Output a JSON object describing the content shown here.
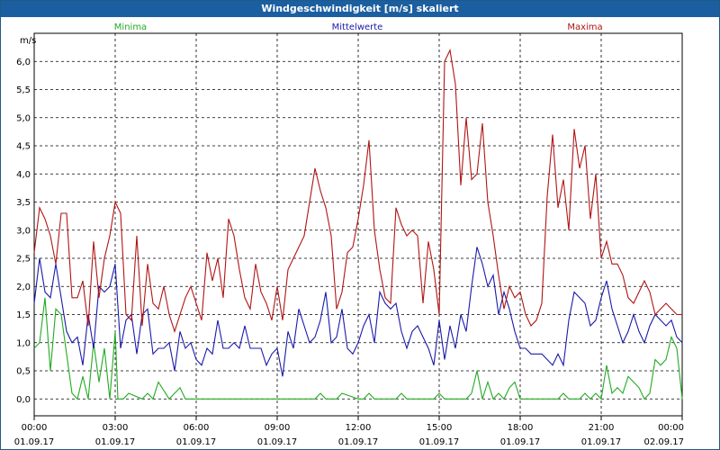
{
  "window": {
    "title": "Windgeschwindigkeit [m/s] skaliert"
  },
  "colors": {
    "minima": "#22aa22",
    "mittelwerte": "#1a1aaa",
    "maxima": "#b01515",
    "titlebar": "#1c5fa0"
  },
  "chart_data": {
    "type": "line",
    "title": "Windgeschwindigkeit [m/s] skaliert",
    "ylabel": "m/s",
    "xlabel": "",
    "ylim": [
      -0.3,
      6.5
    ],
    "xlim": [
      0,
      24
    ],
    "grid": true,
    "legend_placement": "top",
    "yticks": [
      "0,0",
      "0,5",
      "1,0",
      "1,5",
      "2,0",
      "2,5",
      "3,0",
      "3,5",
      "4,0",
      "4,5",
      "5,0",
      "5,5",
      "6,0"
    ],
    "xticks": [
      {
        "time": "00:00",
        "date": "01.09.17"
      },
      {
        "time": "03:00",
        "date": "01.09.17"
      },
      {
        "time": "06:00",
        "date": "01.09.17"
      },
      {
        "time": "09:00",
        "date": "01.09.17"
      },
      {
        "time": "12:00",
        "date": "01.09.17"
      },
      {
        "time": "15:00",
        "date": "01.09.17"
      },
      {
        "time": "18:00",
        "date": "01.09.17"
      },
      {
        "time": "21:00",
        "date": "01.09.17"
      },
      {
        "time": "00:00",
        "date": "02.09.17"
      }
    ],
    "series": [
      {
        "name": "Minima",
        "color": "#22aa22",
        "hours": [
          0,
          0.2,
          0.4,
          0.6,
          0.8,
          1.0,
          1.2,
          1.4,
          1.6,
          1.8,
          2.0,
          2.2,
          2.4,
          2.6,
          2.8,
          3.0,
          3.1,
          3.3,
          3.5,
          4.0,
          4.2,
          4.4,
          4.6,
          5.0,
          5.2,
          5.4,
          5.6,
          5.8,
          6.0,
          6.2,
          6.4,
          6.6,
          6.8,
          7.0,
          10.4,
          10.6,
          10.8,
          11.0,
          11.2,
          11.4,
          12.0,
          12.2,
          12.4,
          12.6,
          13.2,
          13.4,
          13.6,
          13.8,
          14.0,
          14.8,
          15.0,
          15.2,
          15.4,
          16.0,
          16.2,
          16.4,
          16.6,
          16.8,
          17.0,
          17.2,
          17.4,
          17.6,
          17.8,
          18.0,
          18.2,
          19.2,
          19.4,
          19.6,
          19.8,
          20.0,
          20.2,
          20.4,
          20.6,
          20.8,
          21.0,
          21.2,
          21.4,
          21.6,
          21.8,
          22.0,
          22.2,
          22.4,
          22.6,
          22.8,
          23.0,
          23.2,
          23.4,
          23.6,
          23.8,
          24.0
        ],
        "values": [
          0.9,
          1.0,
          1.8,
          0.5,
          1.6,
          1.5,
          0.8,
          0.1,
          0.0,
          0.4,
          0.0,
          1.0,
          0.3,
          0.9,
          0.0,
          1.2,
          0.0,
          0.0,
          0.1,
          0.0,
          0.1,
          0.0,
          0.3,
          0.0,
          0.1,
          0.2,
          0.0,
          0.0,
          0.0,
          0.0,
          0.0,
          0.0,
          0.0,
          0.0,
          0.0,
          0.1,
          0.0,
          0.0,
          0.0,
          0.1,
          0.0,
          0.0,
          0.1,
          0.0,
          0.0,
          0.0,
          0.1,
          0.0,
          0.0,
          0.0,
          0.1,
          0.0,
          0.0,
          0.0,
          0.1,
          0.5,
          0.0,
          0.3,
          0.0,
          0.1,
          0.0,
          0.2,
          0.3,
          0.0,
          0.0,
          0.0,
          0.0,
          0.1,
          0.0,
          0.0,
          0.0,
          0.1,
          0.0,
          0.1,
          0.0,
          0.6,
          0.1,
          0.2,
          0.1,
          0.4,
          0.3,
          0.2,
          0.0,
          0.1,
          0.7,
          0.6,
          0.7,
          1.1,
          0.9,
          0.0
        ]
      },
      {
        "name": "Mittelwerte",
        "color": "#1a1aaa",
        "hours": [
          0,
          0.2,
          0.4,
          0.6,
          0.8,
          1.0,
          1.2,
          1.4,
          1.6,
          1.8,
          2.0,
          2.2,
          2.4,
          2.6,
          2.8,
          3.0,
          3.2,
          3.4,
          3.6,
          3.8,
          4.0,
          4.2,
          4.4,
          4.6,
          4.8,
          5.0,
          5.2,
          5.4,
          5.6,
          5.8,
          6.0,
          6.2,
          6.4,
          6.6,
          6.8,
          7.0,
          7.2,
          7.4,
          7.6,
          7.8,
          8.0,
          8.2,
          8.4,
          8.6,
          8.8,
          9.0,
          9.2,
          9.4,
          9.6,
          9.8,
          10.0,
          10.2,
          10.4,
          10.6,
          10.8,
          11.0,
          11.2,
          11.4,
          11.6,
          11.8,
          12.0,
          12.2,
          12.4,
          12.6,
          12.8,
          13.0,
          13.2,
          13.4,
          13.6,
          13.8,
          14.0,
          14.2,
          14.4,
          14.6,
          14.8,
          15.0,
          15.2,
          15.4,
          15.6,
          15.8,
          16.0,
          16.2,
          16.4,
          16.6,
          16.8,
          17.0,
          17.2,
          17.4,
          17.6,
          17.8,
          18.0,
          18.2,
          18.4,
          18.6,
          18.8,
          19.0,
          19.2,
          19.4,
          19.6,
          19.8,
          20.0,
          20.2,
          20.4,
          20.6,
          20.8,
          21.0,
          21.2,
          21.4,
          21.6,
          21.8,
          22.0,
          22.2,
          22.4,
          22.6,
          22.8,
          23.0,
          23.2,
          23.4,
          23.6,
          23.8,
          24.0
        ],
        "values": [
          1.7,
          2.5,
          1.9,
          1.8,
          2.4,
          1.8,
          1.2,
          1.0,
          1.1,
          0.6,
          1.5,
          0.9,
          2.0,
          1.9,
          2.0,
          2.4,
          0.9,
          1.4,
          1.5,
          0.8,
          1.5,
          1.6,
          0.8,
          0.9,
          0.9,
          1.0,
          0.5,
          1.2,
          0.9,
          1.0,
          0.7,
          0.6,
          0.9,
          0.8,
          1.4,
          0.9,
          0.9,
          1.0,
          0.9,
          1.3,
          0.9,
          0.9,
          0.9,
          0.6,
          0.8,
          0.9,
          0.4,
          1.2,
          0.9,
          1.6,
          1.3,
          1.0,
          1.1,
          1.4,
          1.9,
          1.0,
          1.1,
          1.6,
          0.9,
          0.8,
          1.0,
          1.3,
          1.5,
          1.0,
          1.9,
          1.7,
          1.6,
          1.7,
          1.2,
          0.9,
          1.2,
          1.3,
          1.1,
          0.9,
          0.6,
          1.4,
          0.7,
          1.3,
          0.9,
          1.5,
          1.2,
          2.0,
          2.7,
          2.4,
          2.0,
          2.2,
          1.5,
          1.9,
          1.6,
          1.2,
          0.9,
          0.9,
          0.8,
          0.8,
          0.8,
          0.7,
          0.6,
          0.8,
          0.6,
          1.4,
          1.9,
          1.8,
          1.7,
          1.3,
          1.4,
          1.8,
          2.1,
          1.6,
          1.3,
          1.0,
          1.2,
          1.5,
          1.2,
          1.0,
          1.3,
          1.5,
          1.4,
          1.3,
          1.4,
          1.1,
          1.0
        ]
      },
      {
        "name": "Maxima",
        "color": "#b01515",
        "hours": [
          0,
          0.2,
          0.4,
          0.6,
          0.8,
          1.0,
          1.2,
          1.4,
          1.6,
          1.8,
          2.0,
          2.2,
          2.4,
          2.6,
          2.8,
          3.0,
          3.2,
          3.4,
          3.6,
          3.8,
          4.0,
          4.2,
          4.4,
          4.6,
          4.8,
          5.0,
          5.2,
          5.4,
          5.6,
          5.8,
          6.0,
          6.2,
          6.4,
          6.6,
          6.8,
          7.0,
          7.2,
          7.4,
          7.6,
          7.8,
          8.0,
          8.2,
          8.4,
          8.6,
          8.8,
          9.0,
          9.2,
          9.4,
          9.6,
          9.8,
          10.0,
          10.2,
          10.4,
          10.6,
          10.8,
          11.0,
          11.2,
          11.4,
          11.6,
          11.8,
          12.0,
          12.2,
          12.4,
          12.6,
          12.8,
          13.0,
          13.2,
          13.4,
          13.6,
          13.8,
          14.0,
          14.2,
          14.4,
          14.6,
          14.8,
          15.0,
          15.2,
          15.4,
          15.6,
          15.8,
          16.0,
          16.2,
          16.4,
          16.6,
          16.8,
          17.0,
          17.2,
          17.4,
          17.6,
          17.8,
          18.0,
          18.2,
          18.4,
          18.6,
          18.8,
          19.0,
          19.2,
          19.4,
          19.6,
          19.8,
          20.0,
          20.2,
          20.4,
          20.6,
          20.8,
          21.0,
          21.2,
          21.4,
          21.6,
          21.8,
          22.0,
          22.2,
          22.4,
          22.6,
          22.8,
          23.0,
          23.2,
          23.4,
          23.6,
          23.8,
          24.0
        ],
        "values": [
          2.6,
          3.4,
          3.2,
          2.9,
          2.4,
          3.3,
          3.3,
          1.8,
          1.8,
          2.1,
          1.3,
          2.8,
          1.8,
          2.5,
          2.9,
          3.5,
          3.3,
          1.5,
          1.4,
          2.9,
          1.3,
          2.4,
          1.7,
          1.6,
          2.0,
          1.5,
          1.2,
          1.5,
          1.8,
          2.0,
          1.7,
          1.4,
          2.6,
          2.1,
          2.5,
          1.8,
          3.2,
          2.9,
          2.3,
          1.8,
          1.6,
          2.4,
          1.9,
          1.7,
          1.4,
          2.0,
          1.4,
          2.3,
          2.5,
          2.7,
          2.9,
          3.5,
          4.1,
          3.7,
          3.4,
          2.9,
          1.6,
          1.9,
          2.6,
          2.7,
          3.2,
          3.8,
          4.6,
          3.0,
          2.3,
          1.8,
          1.7,
          3.4,
          3.1,
          2.9,
          3.0,
          2.9,
          1.7,
          2.8,
          2.3,
          1.5,
          6.0,
          6.2,
          5.6,
          3.8,
          5.0,
          3.9,
          4.0,
          4.9,
          3.5,
          2.9,
          2.2,
          1.6,
          2.0,
          1.8,
          1.9,
          1.5,
          1.3,
          1.4,
          1.7,
          3.6,
          4.7,
          3.4,
          3.9,
          3.0,
          4.8,
          4.1,
          4.5,
          3.2,
          4.0,
          2.5,
          2.8,
          2.4,
          2.4,
          2.2,
          1.8,
          1.7,
          1.9,
          2.1,
          1.9,
          1.5,
          1.6,
          1.7,
          1.6,
          1.5,
          1.5
        ]
      }
    ]
  }
}
